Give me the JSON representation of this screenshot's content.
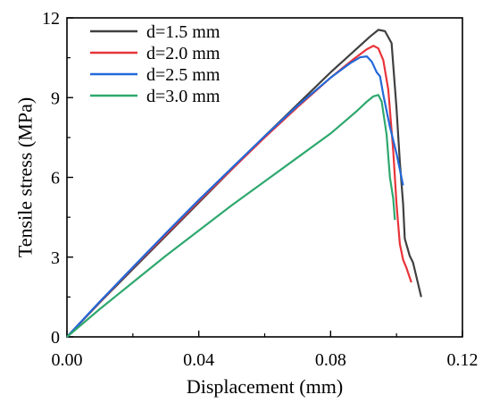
{
  "chart_data": {
    "type": "line",
    "xlabel": "Displacement (mm)",
    "ylabel": "Tensile stress (MPa)",
    "xlim": [
      0,
      0.12
    ],
    "ylim": [
      0,
      12
    ],
    "xticks": [
      "0.00",
      "0.04",
      "0.08",
      "0.12"
    ],
    "yticks": [
      "0",
      "3",
      "6",
      "9",
      "12"
    ],
    "grid": false,
    "legend_position": "top-left",
    "series": [
      {
        "name": "d=1.5 mm",
        "color": "#404040",
        "points": [
          [
            0,
            0
          ],
          [
            0.01,
            1.3
          ],
          [
            0.02,
            2.55
          ],
          [
            0.03,
            3.8
          ],
          [
            0.04,
            5.05
          ],
          [
            0.05,
            6.3
          ],
          [
            0.06,
            7.55
          ],
          [
            0.07,
            8.75
          ],
          [
            0.08,
            9.95
          ],
          [
            0.088,
            10.85
          ],
          [
            0.092,
            11.3
          ],
          [
            0.0945,
            11.55
          ],
          [
            0.0965,
            11.5
          ],
          [
            0.0985,
            11.05
          ],
          [
            0.1,
            8.6
          ],
          [
            0.101,
            6.6
          ],
          [
            0.102,
            5.0
          ],
          [
            0.1025,
            3.7
          ],
          [
            0.104,
            3.05
          ],
          [
            0.105,
            2.8
          ],
          [
            0.1075,
            1.5
          ]
        ]
      },
      {
        "name": "d=2.0 mm",
        "color": "#e8343a",
        "points": [
          [
            0,
            0
          ],
          [
            0.01,
            1.32
          ],
          [
            0.02,
            2.6
          ],
          [
            0.03,
            3.85
          ],
          [
            0.04,
            5.1
          ],
          [
            0.05,
            6.3
          ],
          [
            0.06,
            7.5
          ],
          [
            0.07,
            8.65
          ],
          [
            0.08,
            9.75
          ],
          [
            0.087,
            10.45
          ],
          [
            0.091,
            10.82
          ],
          [
            0.093,
            10.95
          ],
          [
            0.0945,
            10.85
          ],
          [
            0.096,
            10.4
          ],
          [
            0.0975,
            9.3
          ],
          [
            0.099,
            7.0
          ],
          [
            0.1,
            5.0
          ],
          [
            0.101,
            3.5
          ],
          [
            0.102,
            2.9
          ],
          [
            0.103,
            2.6
          ],
          [
            0.1045,
            2.05
          ]
        ]
      },
      {
        "name": "d=2.5 mm",
        "color": "#2369d8",
        "points": [
          [
            0,
            0
          ],
          [
            0.01,
            1.33
          ],
          [
            0.02,
            2.62
          ],
          [
            0.03,
            3.9
          ],
          [
            0.04,
            5.15
          ],
          [
            0.05,
            6.35
          ],
          [
            0.06,
            7.55
          ],
          [
            0.07,
            8.7
          ],
          [
            0.08,
            9.75
          ],
          [
            0.086,
            10.3
          ],
          [
            0.089,
            10.52
          ],
          [
            0.091,
            10.55
          ],
          [
            0.0925,
            10.35
          ],
          [
            0.094,
            9.95
          ],
          [
            0.095,
            9.8
          ],
          [
            0.096,
            9.1
          ],
          [
            0.098,
            7.9
          ],
          [
            0.1,
            6.9
          ],
          [
            0.102,
            5.7
          ]
        ]
      },
      {
        "name": "d=3.0 mm",
        "color": "#2ea86e",
        "points": [
          [
            0,
            0
          ],
          [
            0.01,
            1.05
          ],
          [
            0.02,
            2.05
          ],
          [
            0.03,
            3.05
          ],
          [
            0.04,
            4.0
          ],
          [
            0.05,
            4.95
          ],
          [
            0.06,
            5.85
          ],
          [
            0.07,
            6.75
          ],
          [
            0.08,
            7.65
          ],
          [
            0.088,
            8.5
          ],
          [
            0.091,
            8.85
          ],
          [
            0.093,
            9.05
          ],
          [
            0.0945,
            9.1
          ],
          [
            0.0955,
            8.85
          ],
          [
            0.097,
            7.6
          ],
          [
            0.098,
            6.0
          ],
          [
            0.099,
            5.2
          ],
          [
            0.0995,
            4.4
          ]
        ]
      }
    ]
  }
}
